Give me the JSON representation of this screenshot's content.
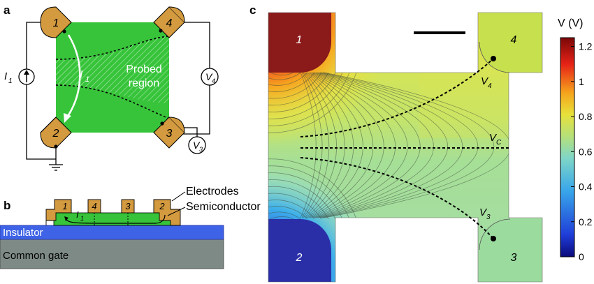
{
  "panel_labels": {
    "a": "a",
    "b": "b",
    "c": "c"
  },
  "panel_a": {
    "electrodes": [
      "1",
      "4",
      "2",
      "3"
    ],
    "probed_region_line1": "Probed",
    "probed_region_line2": "region",
    "current_source": "I",
    "current_source_sub": "1",
    "current_path": "I",
    "current_path_sub": "1",
    "voltmeter_v4": "V",
    "voltmeter_v4_sub": "4",
    "voltmeter_v3": "V",
    "voltmeter_v3_sub": "3"
  },
  "panel_b": {
    "electrode_labels": [
      "1",
      "4",
      "3",
      "2"
    ],
    "current_label": "I",
    "current_label_sub": "1",
    "electrodes_label": "Electrodes",
    "semiconductor_label": "Semiconductor",
    "insulator_label": "Insulator",
    "gate_label": "Common gate"
  },
  "panel_c": {
    "corner_labels": [
      "1",
      "4",
      "2",
      "3"
    ],
    "probe_v4": "V",
    "probe_v4_sub": "4",
    "probe_vc": "V",
    "probe_vc_sub": "C",
    "probe_v3": "V",
    "probe_v3_sub": "3"
  },
  "colorbar": {
    "title": "V (V)",
    "ticks": [
      "1.2",
      "1",
      "0.8",
      "0.6",
      "0.4",
      "0.2",
      "0"
    ],
    "min": 0,
    "max": 1.25
  },
  "colors": {
    "electrode": "#d39a3f",
    "channel": "#37c43a",
    "insulator": "#3f63e6",
    "gate": "#7e8a86",
    "high_potential": "#8b1a1a",
    "low_potential": "#2a2fa8"
  }
}
